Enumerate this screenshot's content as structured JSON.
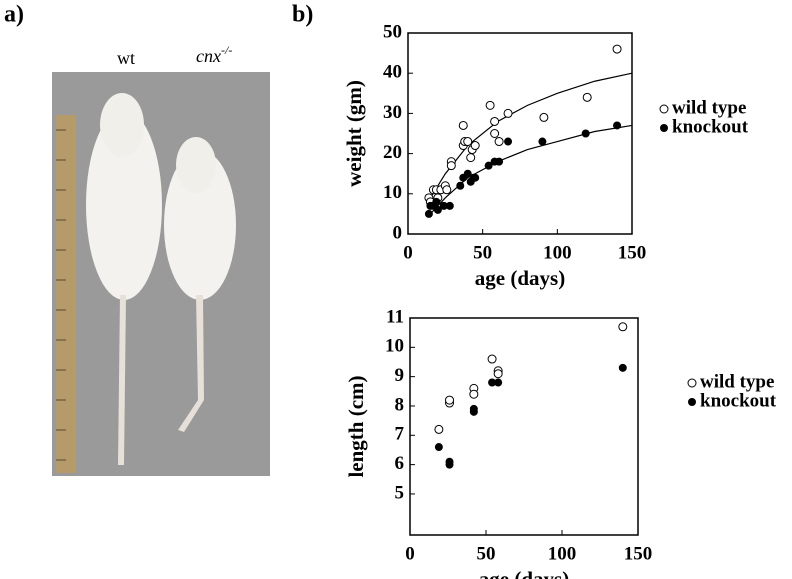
{
  "panels": {
    "a": "a)",
    "b": "b)"
  },
  "photo": {
    "labels": [
      {
        "text": "wt"
      },
      {
        "text": "cnx",
        "sup": "-/-"
      }
    ]
  },
  "chart_data": [
    {
      "type": "scatter",
      "xlabel": "age (days)",
      "ylabel": "weight (gm)",
      "xlim": [
        0,
        150
      ],
      "ylim": [
        0,
        50
      ],
      "xticks": [
        0,
        50,
        100,
        150
      ],
      "yticks": [
        0,
        10,
        20,
        30,
        40,
        50
      ],
      "legend": "right",
      "box": true,
      "series": [
        {
          "name": "wild type",
          "color": "#000000",
          "marker": "open",
          "x": [
            14,
            15,
            17,
            19,
            20,
            22,
            25,
            26,
            29,
            29,
            37,
            37,
            38,
            40,
            42,
            43,
            45,
            55,
            58,
            58,
            61,
            67,
            91,
            120,
            140
          ],
          "values": [
            9,
            8,
            11,
            11,
            9,
            11,
            12,
            11,
            18,
            17,
            22,
            27,
            23,
            23,
            19,
            21,
            22,
            32,
            28,
            25,
            23,
            30,
            29,
            34,
            46
          ],
          "fit": {
            "x": [
              15,
              25,
              40,
              60,
              80,
              100,
              125,
              150
            ],
            "values": [
              9,
              15,
              22,
              28,
              32,
              35,
              38,
              40
            ]
          }
        },
        {
          "name": "knockout",
          "color": "#000000",
          "marker": "filled",
          "x": [
            14,
            15,
            17,
            19,
            20,
            24,
            28,
            35,
            37,
            40,
            42,
            44,
            45,
            54,
            58,
            61,
            67,
            90,
            119,
            140
          ],
          "values": [
            5,
            7,
            7,
            8,
            6,
            7,
            7,
            12,
            14,
            15,
            13,
            14,
            14,
            17,
            18,
            18,
            23,
            23,
            25,
            27
          ],
          "fit": {
            "x": [
              15,
              25,
              40,
              60,
              80,
              100,
              125,
              150
            ],
            "values": [
              5,
              9,
              14,
              18,
              21,
              23,
              25.5,
              27
            ]
          }
        }
      ]
    },
    {
      "type": "scatter",
      "xlabel": "age (days)",
      "ylabel": "length (cm)",
      "xlim": [
        0,
        150
      ],
      "ylim": [
        3.6,
        11
      ],
      "xticks": [
        0,
        50,
        100,
        150
      ],
      "yticks": [
        5,
        6,
        7,
        8,
        9,
        10,
        11
      ],
      "legend": "right",
      "box": true,
      "series": [
        {
          "name": "wild type",
          "color": "#000000",
          "marker": "open",
          "x": [
            19,
            26,
            26,
            42,
            42,
            54,
            58,
            58,
            140
          ],
          "values": [
            7.2,
            8.1,
            8.2,
            8.6,
            8.4,
            9.6,
            9.2,
            9.1,
            10.7
          ]
        },
        {
          "name": "knockout",
          "color": "#000000",
          "marker": "filled",
          "x": [
            19,
            26,
            26,
            42,
            42,
            54,
            58,
            140
          ],
          "values": [
            6.6,
            6.1,
            6.0,
            7.9,
            7.8,
            8.8,
            8.8,
            9.3
          ]
        }
      ]
    }
  ]
}
